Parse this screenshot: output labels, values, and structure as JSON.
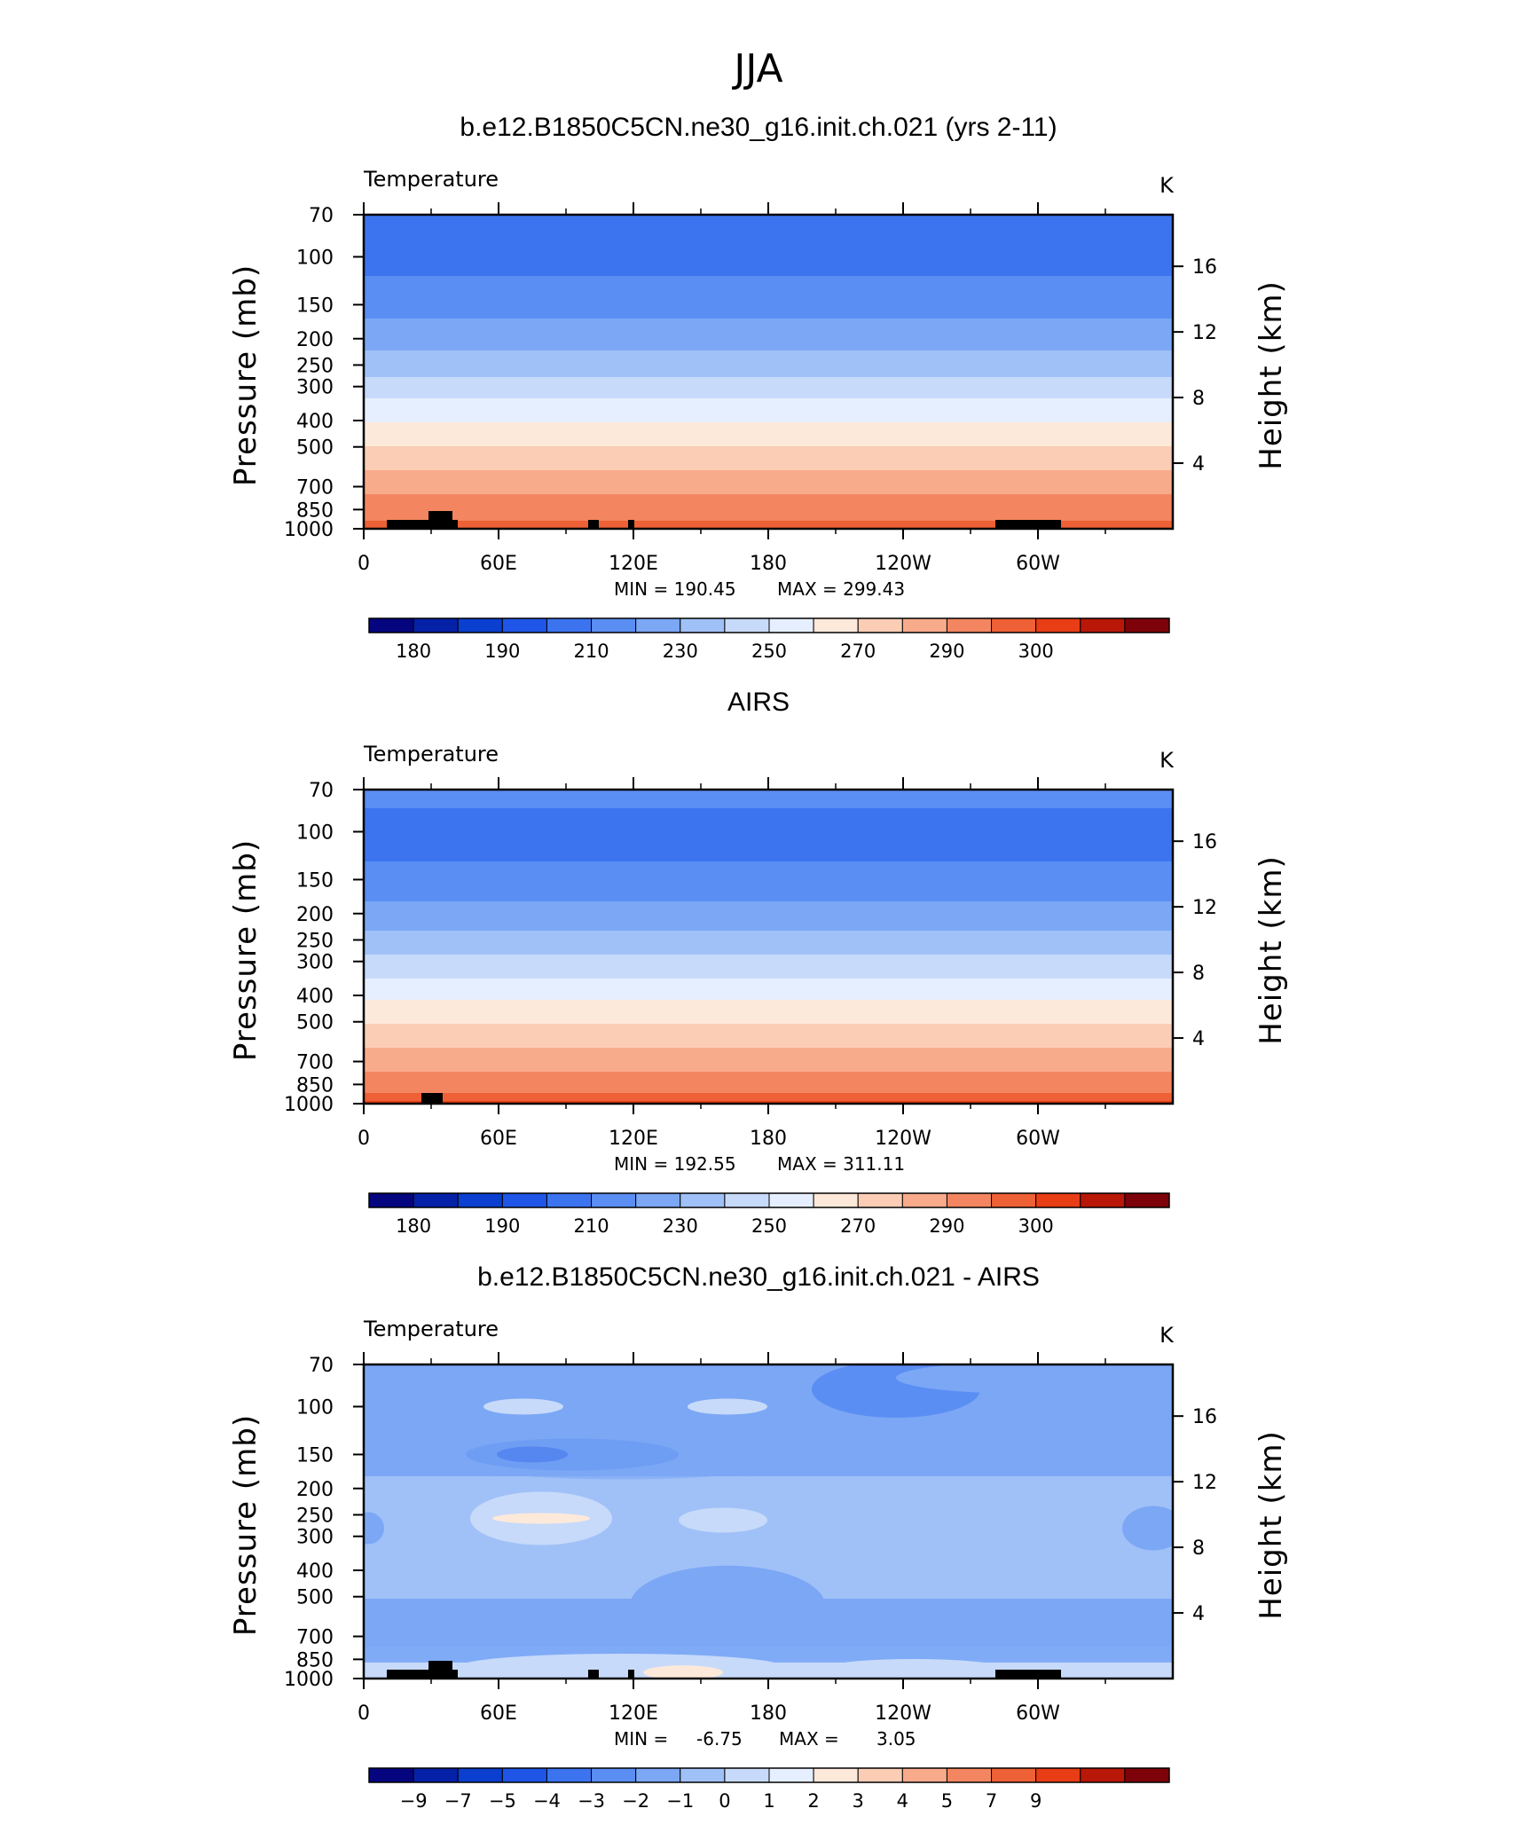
{
  "figure_title": "JJA",
  "chart_data": [
    {
      "type": "heatmap",
      "title": "b.e12.B1850C5CN.ne30_g16.init.ch.021 (yrs 2-11)",
      "field_label": "Temperature",
      "units": "K",
      "ylabel": "Pressure (mb)",
      "ylabel_right": "Height (km)",
      "x_ticks": [
        "0",
        "60E",
        "120E",
        "180",
        "120W",
        "60W"
      ],
      "y_ticks": [
        "70",
        "100",
        "150",
        "200",
        "250",
        "300",
        "400",
        "500",
        "700",
        "850",
        "1000"
      ],
      "y_ticks_right": [
        "16",
        "12",
        "8",
        "4"
      ],
      "min_label": "MIN  =  190.45",
      "max_label": "MAX  =  299.43",
      "min": 190.45,
      "max": 299.43,
      "levels": [
        "180",
        "190",
        "210",
        "230",
        "250",
        "270",
        "290",
        "300"
      ],
      "profile_K": [
        [
          70,
          197
        ],
        [
          100,
          197
        ],
        [
          130,
          202
        ],
        [
          160,
          208
        ],
        [
          190,
          214
        ],
        [
          230,
          222
        ],
        [
          270,
          229
        ],
        [
          320,
          238
        ],
        [
          380,
          247
        ],
        [
          450,
          255
        ],
        [
          530,
          263
        ],
        [
          620,
          271
        ],
        [
          720,
          278
        ],
        [
          820,
          284
        ],
        [
          920,
          289
        ],
        [
          1000,
          295
        ]
      ]
    },
    {
      "type": "heatmap",
      "title": "AIRS",
      "field_label": "Temperature",
      "units": "K",
      "ylabel": "Pressure (mb)",
      "ylabel_right": "Height (km)",
      "x_ticks": [
        "0",
        "60E",
        "120E",
        "180",
        "120W",
        "60W"
      ],
      "y_ticks": [
        "70",
        "100",
        "150",
        "200",
        "250",
        "300",
        "400",
        "500",
        "700",
        "850",
        "1000"
      ],
      "y_ticks_right": [
        "16",
        "12",
        "8",
        "4"
      ],
      "min_label": "MIN  =  192.55",
      "max_label": "MAX  =  311.11",
      "min": 192.55,
      "max": 311.11,
      "levels": [
        "180",
        "190",
        "210",
        "230",
        "250",
        "270",
        "290",
        "300"
      ],
      "profile_K": [
        [
          70,
          203
        ],
        [
          90,
          198
        ],
        [
          110,
          197
        ],
        [
          140,
          202
        ],
        [
          170,
          208
        ],
        [
          200,
          214
        ],
        [
          240,
          222
        ],
        [
          280,
          229
        ],
        [
          330,
          238
        ],
        [
          390,
          247
        ],
        [
          460,
          255
        ],
        [
          540,
          263
        ],
        [
          630,
          271
        ],
        [
          730,
          278
        ],
        [
          830,
          284
        ],
        [
          930,
          291
        ],
        [
          1000,
          298
        ]
      ]
    },
    {
      "type": "heatmap",
      "title": "b.e12.B1850C5CN.ne30_g16.init.ch.021 - AIRS",
      "field_label": "Temperature",
      "units": "K",
      "ylabel": "Pressure (mb)",
      "ylabel_right": "Height (km)",
      "x_ticks": [
        "0",
        "60E",
        "120E",
        "180",
        "120W",
        "60W"
      ],
      "y_ticks": [
        "70",
        "100",
        "150",
        "200",
        "250",
        "300",
        "400",
        "500",
        "700",
        "850",
        "1000"
      ],
      "y_ticks_right": [
        "16",
        "12",
        "8",
        "4"
      ],
      "min_label": "MIN  =",
      "max_label": "MAX  =",
      "min_value": "-6.75",
      "max_value": "3.05",
      "min": -6.75,
      "max": 3.05,
      "levels": [
        "−9",
        "−7",
        "−5",
        "−4",
        "−3",
        "−2",
        "−1",
        "0",
        "1",
        "2",
        "3",
        "4",
        "5",
        "7",
        "9"
      ],
      "profile_diff": [
        [
          70,
          -2.2
        ],
        [
          150,
          -2.6
        ],
        [
          200,
          -1.6
        ],
        [
          300,
          -1.2
        ],
        [
          450,
          -1.6
        ],
        [
          600,
          -2.6
        ],
        [
          750,
          -2.2
        ],
        [
          900,
          -0.6
        ],
        [
          1000,
          -1.0
        ]
      ]
    }
  ],
  "colormap_17": [
    "#04057f",
    "#0521a8",
    "#0a3fcf",
    "#1f56e8",
    "#3c74f0",
    "#5a8ef3",
    "#7ba7f5",
    "#a0c1f7",
    "#c7dafa",
    "#e6efff",
    "#fde9da",
    "#fbcdb4",
    "#f8ab8b",
    "#f38660",
    "#ee6035",
    "#e83d15",
    "#b91707",
    "#7e0209"
  ]
}
